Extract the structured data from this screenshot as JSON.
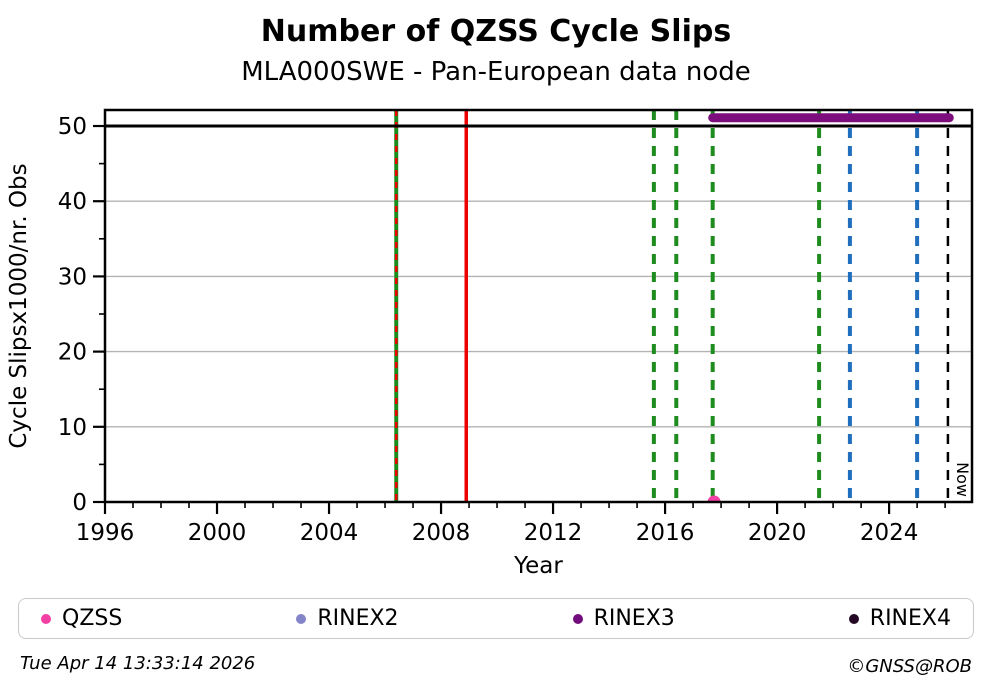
{
  "header": {
    "title": "Number of QZSS Cycle Slips",
    "subtitle": "MLA000SWE - Pan-European data node"
  },
  "chart_data": {
    "type": "scatter",
    "title": "Number of QZSS Cycle Slips",
    "subtitle": "MLA000SWE - Pan-European data node",
    "xlabel": "Year",
    "ylabel": "Cycle Slipsx1000/nr. Obs",
    "axis": {
      "x_min": 1996,
      "x_max": 2026.96,
      "y_min": 0,
      "y_max": 52.13,
      "x_major_ticks": [
        1996,
        2000,
        2004,
        2008,
        2012,
        2016,
        2020,
        2024
      ],
      "x_minor_step": 1,
      "y_major_ticks": [
        0,
        10,
        20,
        30,
        40,
        50
      ],
      "y_minor_step": 5,
      "y_gridlines": [
        10,
        20,
        30,
        40
      ],
      "grid_color": "#b3b3b3"
    },
    "cap_line": {
      "y": 50,
      "color": "#000000",
      "width": 3
    },
    "series": [
      {
        "name": "QZSS",
        "color": "#f43fa5",
        "marker": "circle",
        "points": [
          {
            "x": 2017.75,
            "y": 0
          }
        ]
      },
      {
        "name": "RINEX3",
        "color": "#7d0d7d",
        "type": "availability-bar",
        "y": 51.1,
        "x_start": 2017.7,
        "x_end": 2026.15
      }
    ],
    "event_lines": [
      {
        "x": 2006.4,
        "color": "#1e8c1e",
        "style": "solid",
        "width": 4
      },
      {
        "x": 2006.4,
        "color": "#ee0000",
        "style": "dashed",
        "width": 2.5,
        "dash": "6 6"
      },
      {
        "x": 2008.9,
        "color": "#ee0000",
        "style": "solid",
        "width": 3.5
      },
      {
        "x": 2015.6,
        "color": "#1e8c1e",
        "style": "dashed",
        "width": 4,
        "dash": "10 8"
      },
      {
        "x": 2016.4,
        "color": "#1e8c1e",
        "style": "dashed",
        "width": 4,
        "dash": "10 8"
      },
      {
        "x": 2017.7,
        "color": "#1e8c1e",
        "style": "dashed",
        "width": 4,
        "dash": "10 8"
      },
      {
        "x": 2021.5,
        "color": "#1e8c1e",
        "style": "dashed",
        "width": 4,
        "dash": "10 8"
      },
      {
        "x": 2022.6,
        "color": "#1f6fbe",
        "style": "dashed",
        "width": 4,
        "dash": "10 8"
      },
      {
        "x": 2025.0,
        "color": "#1f6fbe",
        "style": "dashed",
        "width": 4,
        "dash": "10 8"
      },
      {
        "x": 2026.1,
        "color": "#000000",
        "style": "dashed",
        "width": 2.5,
        "dash": "10 8",
        "label": "Now"
      }
    ],
    "now_label": "Now",
    "legend": [
      {
        "label": "QZSS",
        "color": "#f43fa5"
      },
      {
        "label": "RINEX2",
        "color": "#8484c8"
      },
      {
        "label": "RINEX3",
        "color": "#730d7d"
      },
      {
        "label": "RINEX4",
        "color": "#240824"
      }
    ],
    "legend_position": "bottom"
  },
  "footer": {
    "timestamp": "Tue Apr 14 13:33:14 2026",
    "credit": "©GNSS@ROB"
  }
}
